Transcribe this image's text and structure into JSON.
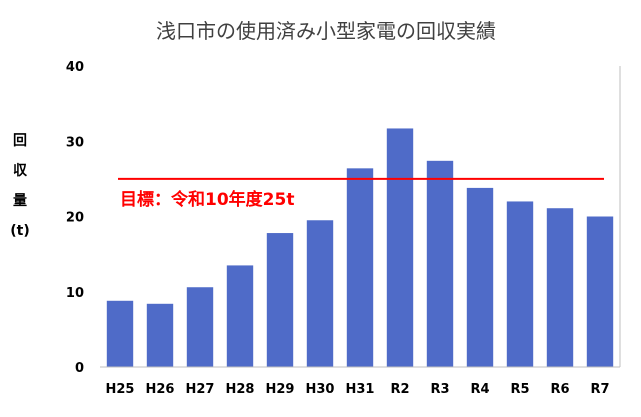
{
  "chart_data": {
    "type": "bar",
    "title": "浅口市の使用済み小型家電の回収実績",
    "ylabel_lines": [
      "回",
      "収",
      "量",
      "(t)"
    ],
    "xlabel": "",
    "categories": [
      "H25",
      "H26",
      "H27",
      "H28",
      "H29",
      "H30",
      "H31",
      "R2",
      "R3",
      "R4",
      "R5",
      "R6",
      "R7"
    ],
    "values": [
      8.8,
      8.4,
      10.6,
      13.5,
      17.8,
      19.5,
      26.4,
      31.7,
      27.4,
      23.8,
      22.0,
      21.1,
      20.0
    ],
    "ylim": [
      0,
      40
    ],
    "yticks": [
      0,
      10,
      20,
      30,
      40
    ],
    "grid": false,
    "bar_color": "#4f6bc8",
    "target": {
      "value": 25,
      "label": "目標：令和10年度25t",
      "color": "#ff0000"
    }
  }
}
